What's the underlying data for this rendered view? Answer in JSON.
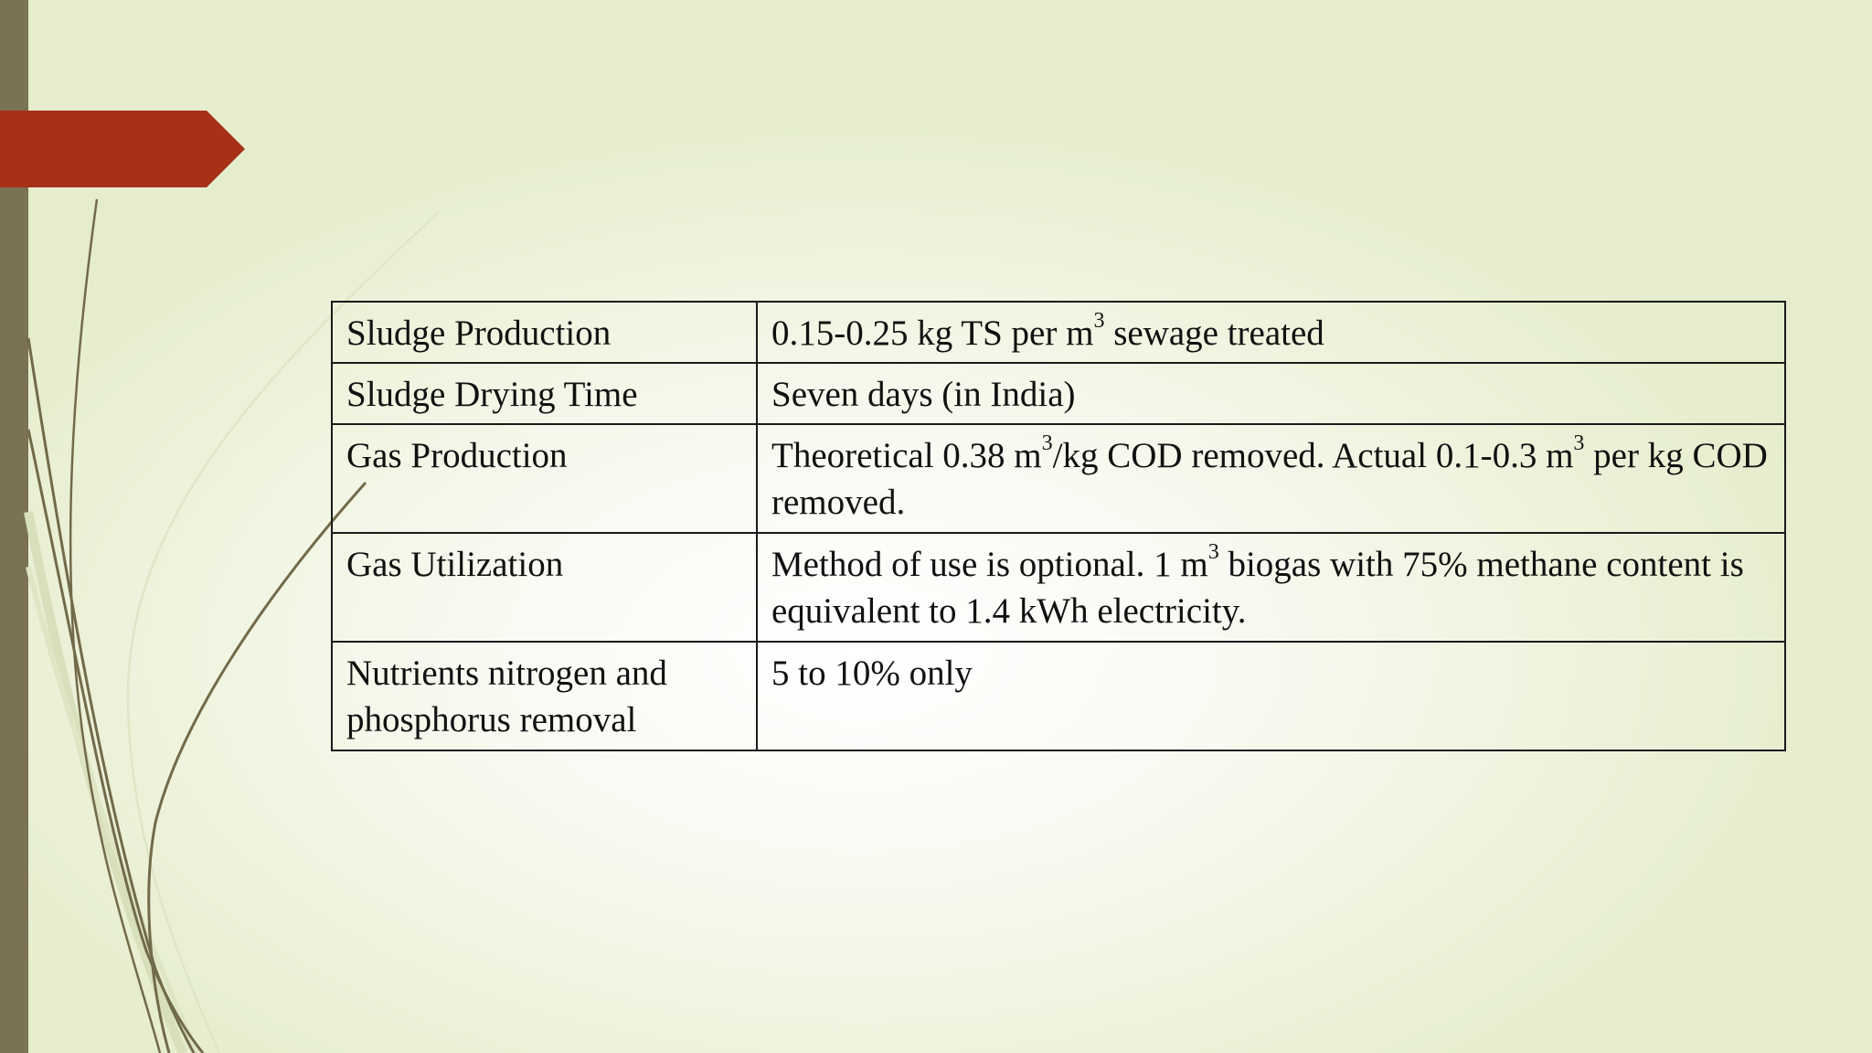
{
  "slide": {
    "colors": {
      "sidebar": "#7a7253",
      "accent_tab": "#a63018",
      "background": "#eef3dd",
      "curves": "#726a4a"
    },
    "rows": [
      {
        "parameter": "Sludge Production",
        "value": {
          "before": "0.15-0.25 kg TS per m",
          "sup": "3",
          "after": " sewage treated"
        }
      },
      {
        "parameter": "Sludge Drying Time",
        "value": {
          "text": "Seven days (in India)"
        }
      },
      {
        "parameter": "Gas Production",
        "value": {
          "part1": "Theoretical 0.38 m",
          "sup1": "3",
          "part2": "/kg COD removed. Actual 0.1-0.3 m",
          "sup2": "3",
          "part3": " per kg COD removed."
        }
      },
      {
        "parameter": "Gas Utilization",
        "value": {
          "before": "Method of use is optional. 1 m",
          "sup": "3",
          "after": " biogas with 75% methane content is equivalent to 1.4 kWh electricity."
        }
      },
      {
        "parameter": "Nutrients nitrogen and phosphorus removal",
        "value": {
          "text": "5 to 10% only"
        }
      }
    ]
  }
}
